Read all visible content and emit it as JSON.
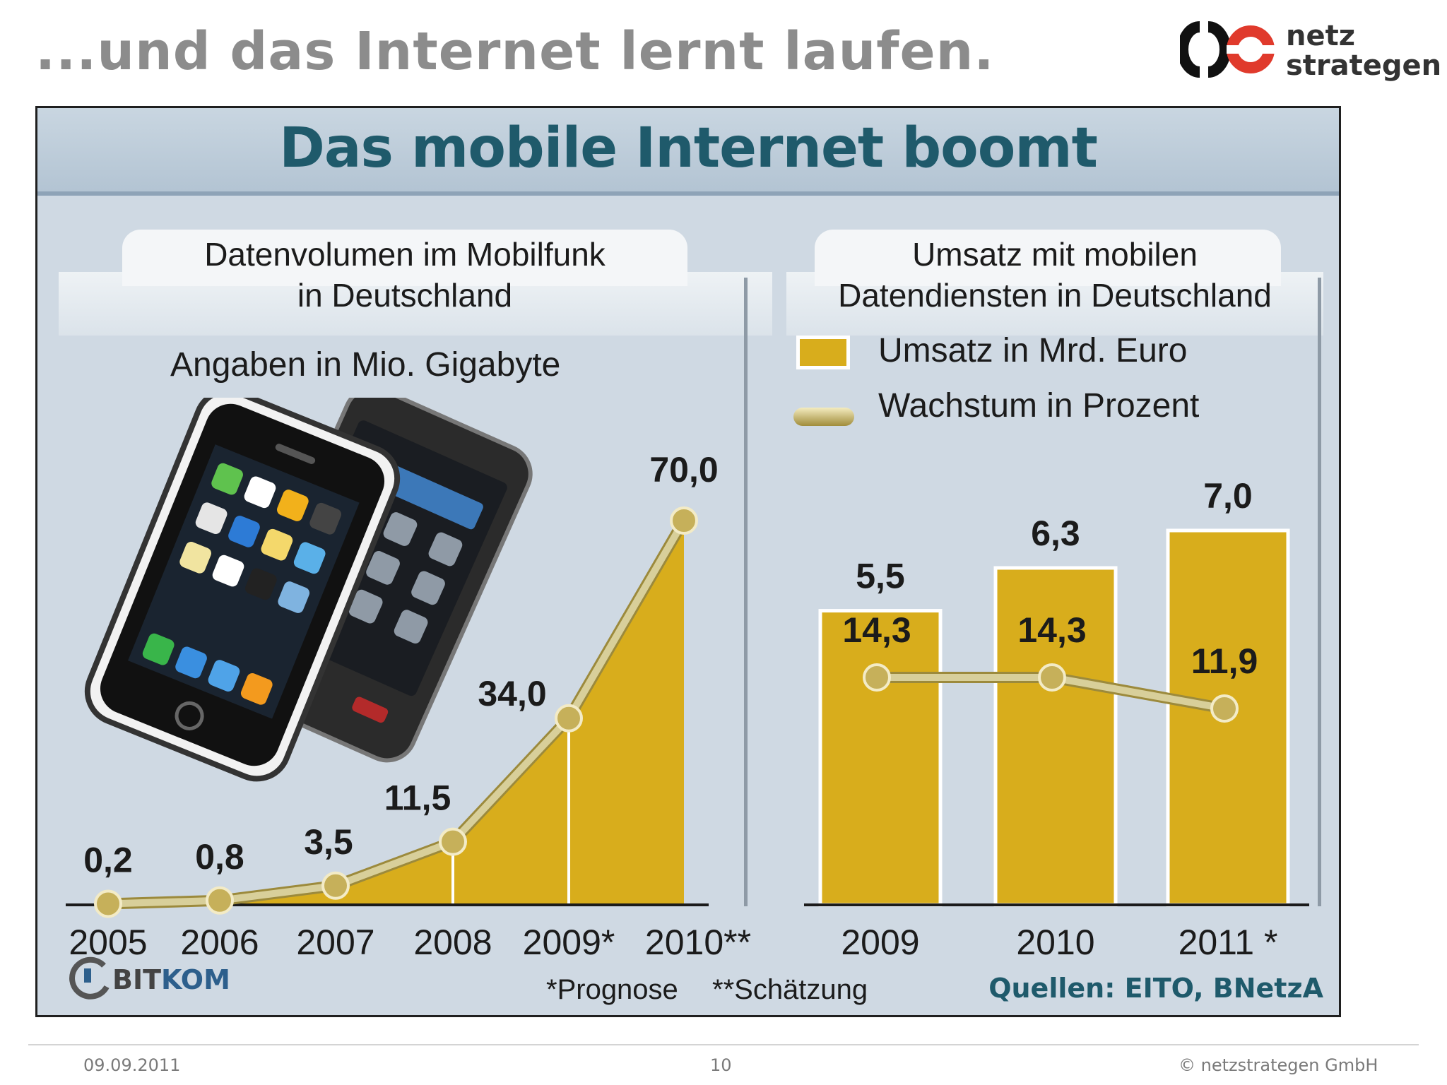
{
  "slide": {
    "title": "...und das Internet lernt laufen.",
    "logo": {
      "line1": "netz",
      "line2": "strategen"
    }
  },
  "banner": {
    "title": "Das mobile Internet boomt"
  },
  "left_chart": {
    "heading_line1": "Datenvolumen im Mobilfunk",
    "heading_line2": "in Deutschland",
    "subtitle": "Angaben in Mio. Gigabyte"
  },
  "right_chart": {
    "heading_line1": "Umsatz mit mobilen",
    "heading_line2": "Datendiensten in Deutschland",
    "legend_bar": "Umsatz in Mrd. Euro",
    "legend_line": "Wachstum in Prozent"
  },
  "source": {
    "brand": "BITKOM",
    "brand_part1": "BIT",
    "brand_part2": "KOM",
    "footnote1": "*Prognose",
    "footnote2": "**Schätzung",
    "sources": "Quellen: EITO, BNetzA"
  },
  "footer": {
    "date": "09.09.2011",
    "page": "10",
    "copyright": "© netzstrategen GmbH"
  },
  "colors": {
    "bar_fill": "#d8ad1c",
    "line_stroke": "#d8cf9a",
    "heading_teal": "#1f5a6b",
    "panel_bg": "#cfd9e3"
  },
  "chart_data": [
    {
      "type": "area",
      "title": "Datenvolumen im Mobilfunk in Deutschland",
      "subtitle": "Angaben in Mio. Gigabyte",
      "categories": [
        "2005",
        "2006",
        "2007",
        "2008",
        "2009*",
        "2010**"
      ],
      "values": [
        0.2,
        0.8,
        3.5,
        11.5,
        34.0,
        70.0
      ],
      "value_labels": [
        "0,2",
        "0,8",
        "3,5",
        "11,5",
        "34,0",
        "70,0"
      ],
      "ylim": [
        0,
        70
      ],
      "grid": false
    },
    {
      "type": "bar",
      "title": "Umsatz mit mobilen Datendiensten in Deutschland",
      "categories": [
        "2009",
        "2010",
        "2011 *"
      ],
      "series": [
        {
          "name": "Umsatz in Mrd. Euro",
          "type": "bar",
          "values": [
            5.5,
            6.3,
            7.0
          ],
          "labels": [
            "5,5",
            "6,3",
            "7,0"
          ]
        },
        {
          "name": "Wachstum in Prozent",
          "type": "line",
          "values": [
            14.3,
            14.3,
            11.9
          ],
          "labels": [
            "14,3",
            "14,3",
            "11,9"
          ]
        }
      ],
      "ylim": [
        0,
        7
      ],
      "legend": "top-left",
      "grid": false
    }
  ]
}
